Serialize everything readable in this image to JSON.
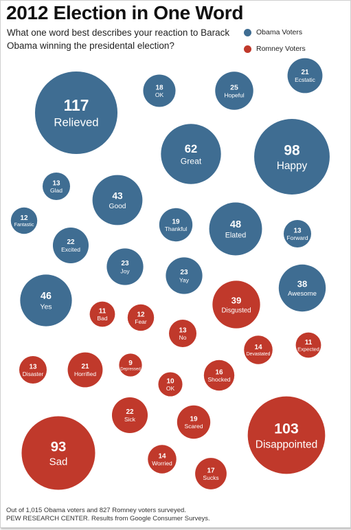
{
  "header": {
    "title": "2012 Election in One Word",
    "question": "What one word best describes your reaction to Barack Obama winning the presidental election?"
  },
  "legend": [
    {
      "label": "Obama Voters",
      "color": "#3f6d92"
    },
    {
      "label": "Romney Voters",
      "color": "#c0392b"
    }
  ],
  "footer": {
    "line1": "Out of 1,015 Obama voters and 827 Romney voters surveyed.",
    "line2": "PEW RESEARCH CENTER. Results from Google Consumer Surveys."
  },
  "colors": {
    "obama": "#3f6d92",
    "romney": "#c0392b"
  },
  "chart_data": {
    "type": "bubble",
    "series": [
      {
        "name": "Obama Voters",
        "items": [
          {
            "word": "Relieved",
            "value": 117
          },
          {
            "word": "OK",
            "value": 18
          },
          {
            "word": "Hopeful",
            "value": 25
          },
          {
            "word": "Ecstatic",
            "value": 21
          },
          {
            "word": "Great",
            "value": 62
          },
          {
            "word": "Happy",
            "value": 98
          },
          {
            "word": "Glad",
            "value": 13
          },
          {
            "word": "Good",
            "value": 43
          },
          {
            "word": "Fantastic",
            "value": 12
          },
          {
            "word": "Thankful",
            "value": 19
          },
          {
            "word": "Elated",
            "value": 48
          },
          {
            "word": "Forward",
            "value": 13
          },
          {
            "word": "Excited",
            "value": 22
          },
          {
            "word": "Joy",
            "value": 23
          },
          {
            "word": "Yay",
            "value": 23
          },
          {
            "word": "Awesome",
            "value": 38
          },
          {
            "word": "Yes",
            "value": 46
          }
        ]
      },
      {
        "name": "Romney Voters",
        "items": [
          {
            "word": "Disgusted",
            "value": 39
          },
          {
            "word": "Bad",
            "value": 11
          },
          {
            "word": "Fear",
            "value": 12
          },
          {
            "word": "No",
            "value": 13
          },
          {
            "word": "Devastated",
            "value": 14
          },
          {
            "word": "Expected",
            "value": 11
          },
          {
            "word": "Disaster",
            "value": 13
          },
          {
            "word": "Horrified",
            "value": 21
          },
          {
            "word": "Depressed",
            "value": 9
          },
          {
            "word": "OK",
            "value": 10
          },
          {
            "word": "Shocked",
            "value": 16
          },
          {
            "word": "Sick",
            "value": 22
          },
          {
            "word": "Scared",
            "value": 19
          },
          {
            "word": "Disappointed",
            "value": 103
          },
          {
            "word": "Sad",
            "value": 93
          },
          {
            "word": "Worried",
            "value": 14
          },
          {
            "word": "Sucks",
            "value": 17
          }
        ]
      }
    ]
  }
}
